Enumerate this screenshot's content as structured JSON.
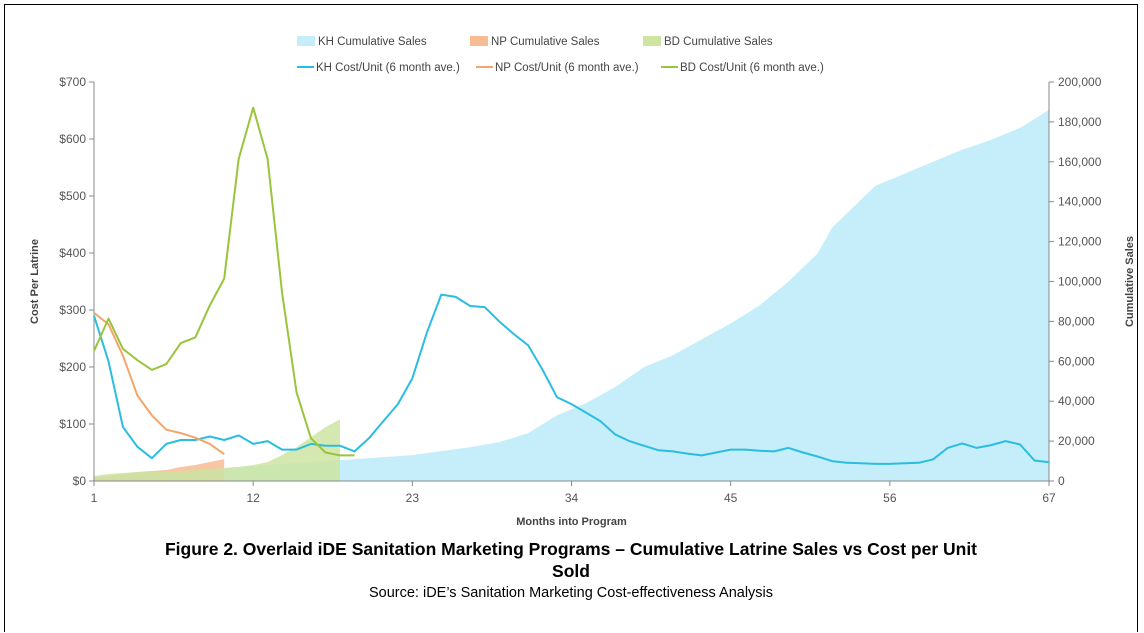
{
  "chart_data": {
    "type": "line",
    "legend": [
      {
        "label": "KH Cumulative Sales",
        "kind": "area",
        "color": "#c5eefa"
      },
      {
        "label": "NP Cumulative Sales",
        "kind": "area",
        "color": "#f7bc92"
      },
      {
        "label": "BD Cumulative Sales",
        "kind": "area",
        "color": "#cde4a2"
      },
      {
        "label": "KH Cost/Unit (6 month ave.)",
        "kind": "line",
        "color": "#2bbde0"
      },
      {
        "label": "NP Cost/Unit (6 month ave.)",
        "kind": "line",
        "color": "#f5a56a"
      },
      {
        "label": "BD Cost/Unit (6 month ave.)",
        "kind": "line",
        "color": "#99c43c"
      }
    ],
    "legend_position": "top-center",
    "xlabel": "Months into Program",
    "ylabel_left": "Cost Per Latrine",
    "ylabel_right": "Cumulative Sales",
    "x_range": [
      1,
      67
    ],
    "x_ticks": [
      "1",
      "12",
      "23",
      "34",
      "45",
      "56",
      "67"
    ],
    "y_left_range": [
      0,
      700
    ],
    "y_left_ticks": [
      "$0",
      "$100",
      "$200",
      "$300",
      "$400",
      "$500",
      "$600",
      "$700"
    ],
    "y_right_range": [
      0,
      200000
    ],
    "y_right_ticks": [
      "0",
      "20,000",
      "40,000",
      "60,000",
      "80,000",
      "100,000",
      "120,000",
      "140,000",
      "160,000",
      "180,000",
      "200,000"
    ],
    "grid": false,
    "area_series": [
      {
        "name": "KH Cumulative Sales",
        "axis": "right",
        "color": "#c5eefa",
        "x": [
          1,
          3,
          5,
          7,
          9,
          11,
          13,
          15,
          17,
          19,
          21,
          23,
          25,
          27,
          29,
          31,
          33,
          35,
          37,
          39,
          41,
          43,
          45,
          47,
          49,
          51,
          52,
          53,
          55,
          57,
          59,
          61,
          63,
          65,
          67
        ],
        "y": [
          2000,
          3000,
          4000,
          5000,
          6000,
          7000,
          8000,
          9000,
          10000,
          11000,
          12000,
          13000,
          15000,
          17000,
          19500,
          24000,
          33000,
          39000,
          47000,
          57000,
          63000,
          71000,
          79000,
          88000,
          100000,
          114000,
          127000,
          134000,
          148000,
          154000,
          160000,
          166000,
          171000,
          177000,
          186000
        ]
      },
      {
        "name": "NP Cumulative Sales",
        "axis": "right",
        "color": "#f7bc92",
        "x": [
          1,
          2,
          3,
          4,
          5,
          6,
          7,
          8,
          9,
          10
        ],
        "y": [
          1500,
          2500,
          3500,
          4500,
          5000,
          5500,
          7000,
          8000,
          9500,
          11000
        ]
      },
      {
        "name": "BD Cumulative Sales",
        "axis": "right",
        "color": "#cde4a2",
        "x": [
          1,
          2,
          3,
          4,
          5,
          6,
          7,
          8,
          9,
          10,
          11,
          12,
          13,
          14,
          15,
          16,
          17,
          18
        ],
        "y": [
          2500,
          3500,
          4000,
          4500,
          4500,
          4500,
          5000,
          5500,
          6000,
          6500,
          7000,
          8000,
          9500,
          13000,
          17000,
          22000,
          27000,
          31000
        ]
      }
    ],
    "line_series": [
      {
        "name": "KH Cost/Unit (6 month ave.)",
        "axis": "left",
        "color": "#2bbde0",
        "x": [
          1,
          2,
          3,
          4,
          5,
          6,
          7,
          8,
          9,
          10,
          11,
          12,
          13,
          14,
          15,
          16,
          17,
          18,
          19,
          20,
          21,
          22,
          23,
          24,
          25,
          26,
          27,
          28,
          29,
          30,
          31,
          32,
          33,
          34,
          35,
          36,
          37,
          38,
          39,
          40,
          41,
          42,
          43,
          44,
          45,
          46,
          47,
          48,
          49,
          50,
          51,
          52,
          53,
          54,
          55,
          56,
          57,
          58,
          59,
          60,
          61,
          62,
          63,
          64,
          65,
          66,
          67
        ],
        "y": [
          290,
          210,
          95,
          60,
          40,
          65,
          72,
          72,
          78,
          72,
          80,
          65,
          70,
          55,
          55,
          65,
          62,
          62,
          52,
          75,
          105,
          135,
          180,
          260,
          327,
          323,
          307,
          305,
          280,
          258,
          238,
          195,
          147,
          135,
          120,
          105,
          82,
          70,
          62,
          54,
          52,
          48,
          45,
          50,
          55,
          55,
          53,
          52,
          58,
          50,
          43,
          35,
          32,
          31,
          30,
          30,
          31,
          32,
          38,
          58,
          66,
          58,
          63,
          70,
          64,
          36,
          33
        ]
      },
      {
        "name": "NP Cost/Unit (6 month ave.)",
        "axis": "left",
        "color": "#f5a56a",
        "x": [
          1,
          2,
          3,
          4,
          5,
          6,
          7,
          8,
          9,
          10
        ],
        "y": [
          295,
          275,
          220,
          150,
          115,
          90,
          84,
          76,
          65,
          47
        ]
      },
      {
        "name": "BD Cost/Unit (6 month ave.)",
        "axis": "left",
        "color": "#99c43c",
        "x": [
          1,
          2,
          3,
          4,
          5,
          6,
          7,
          8,
          9,
          10,
          11,
          12,
          13,
          14,
          15,
          16,
          17,
          18,
          19
        ],
        "y": [
          228,
          285,
          232,
          212,
          195,
          205,
          242,
          252,
          308,
          355,
          565,
          655,
          565,
          330,
          155,
          75,
          50,
          45,
          45
        ]
      }
    ]
  },
  "caption": {
    "line1": "Figure 2. Overlaid iDE Sanitation Marketing Programs – Cumulative Latrine Sales vs Cost per Unit",
    "line2": "Sold"
  },
  "source": "Source: iDE’s Sanitation Marketing Cost-effectiveness Analysis"
}
